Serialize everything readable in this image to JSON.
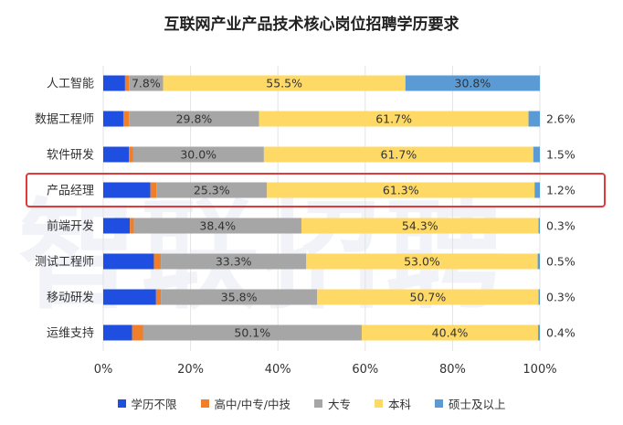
{
  "chart_data": {
    "type": "bar",
    "stacked": true,
    "orientation": "horizontal",
    "title": "互联网产业产品技术核心岗位招聘学历要求",
    "categories": [
      "人工智能",
      "数据工程师",
      "软件研发",
      "产品经理",
      "前端开发",
      "测试工程师",
      "移动研发",
      "运维支持"
    ],
    "series": [
      {
        "name": "学历不限",
        "color": "#1f4fe0",
        "values": [
          5.0,
          4.6,
          5.9,
          10.8,
          6.1,
          11.6,
          12.1,
          6.6
        ]
      },
      {
        "name": "高中/中专/中技",
        "color": "#f07f2a",
        "values": [
          0.9,
          1.3,
          0.9,
          1.4,
          0.9,
          1.6,
          1.1,
          2.5
        ]
      },
      {
        "name": "大专",
        "color": "#a6a6a6",
        "values": [
          7.8,
          29.8,
          30.0,
          25.3,
          38.4,
          33.3,
          35.8,
          50.1
        ]
      },
      {
        "name": "本科",
        "color": "#ffd966",
        "values": [
          55.5,
          61.7,
          61.7,
          61.3,
          54.3,
          53.0,
          50.7,
          40.4
        ]
      },
      {
        "name": "硕士及以上",
        "color": "#5b9bd5",
        "values": [
          30.8,
          2.6,
          1.5,
          1.2,
          0.3,
          0.5,
          0.3,
          0.4
        ]
      }
    ],
    "data_labels": {
      "大专": [
        "7.8%",
        "29.8%",
        "30.0%",
        "25.3%",
        "38.4%",
        "33.3%",
        "35.8%",
        "50.1%"
      ],
      "本科": [
        "55.5%",
        "61.7%",
        "61.7%",
        "61.3%",
        "54.3%",
        "53.0%",
        "50.7%",
        "40.4%"
      ],
      "硕士及以上": [
        "30.8%",
        "2.6%",
        "1.5%",
        "1.2%",
        "0.3%",
        "0.5%",
        "0.3%",
        "0.4%"
      ]
    },
    "x_ticks": [
      "0%",
      "20%",
      "40%",
      "60%",
      "80%",
      "100%"
    ],
    "xlim": [
      0,
      100
    ],
    "grid": true,
    "legend_position": "bottom",
    "highlight_category": "产品经理",
    "highlight_color": "#e03a3a"
  },
  "watermark": "智联招聘"
}
